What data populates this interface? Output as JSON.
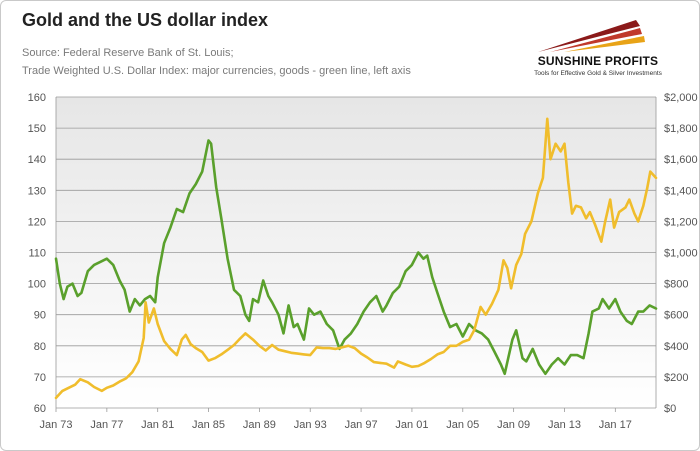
{
  "header": {
    "title": "Gold and the US dollar index",
    "source_line1": "Source: Federal Reserve Bank of St. Louis;",
    "source_line2": "Trade Weighted U.S. Dollar Index: major currencies, goods - green line, left axis"
  },
  "logo": {
    "name": "SUNSHINE PROFITS",
    "tagline": "Tools for Effective Gold & Silver Investments",
    "colors": [
      "#8b1a1a",
      "#c0392b",
      "#e8a317"
    ]
  },
  "chart_data": {
    "type": "line",
    "title": "Gold and the US dollar index",
    "x_tick_labels": [
      "Jan 73",
      "Jan 77",
      "Jan 81",
      "Jan 85",
      "Jan 89",
      "Jan 93",
      "Jan 97",
      "Jan 01",
      "Jan 05",
      "Jan 09",
      "Jan 13",
      "Jan 17"
    ],
    "x_range": [
      1973.0,
      2020.2
    ],
    "y_left": {
      "range": [
        60,
        160
      ],
      "ticks": [
        60,
        70,
        80,
        90,
        100,
        110,
        120,
        130,
        140,
        150,
        160
      ]
    },
    "y_right": {
      "range": [
        0,
        2000
      ],
      "tick_labels": [
        "$0",
        "$200",
        "$400",
        "$600",
        "$800",
        "$1,000",
        "$1,200",
        "$1,400",
        "$1,600",
        "$1,800",
        "$2,000"
      ]
    },
    "grid": true,
    "series": [
      {
        "color": "#5aa02c",
        "axis": "left",
        "points": [
          [
            1973.0,
            108
          ],
          [
            1973.3,
            100
          ],
          [
            1973.6,
            95
          ],
          [
            1973.9,
            99
          ],
          [
            1974.3,
            100
          ],
          [
            1974.7,
            96
          ],
          [
            1975.0,
            97
          ],
          [
            1975.5,
            104
          ],
          [
            1976.0,
            106
          ],
          [
            1976.5,
            107
          ],
          [
            1977.0,
            108
          ],
          [
            1977.5,
            106
          ],
          [
            1978.0,
            101
          ],
          [
            1978.4,
            98
          ],
          [
            1978.8,
            91
          ],
          [
            1979.2,
            95
          ],
          [
            1979.6,
            93
          ],
          [
            1980.0,
            95
          ],
          [
            1980.4,
            96
          ],
          [
            1980.8,
            94
          ],
          [
            1981.0,
            102
          ],
          [
            1981.5,
            113
          ],
          [
            1982.0,
            118
          ],
          [
            1982.5,
            124
          ],
          [
            1983.0,
            123
          ],
          [
            1983.5,
            129
          ],
          [
            1984.0,
            132
          ],
          [
            1984.5,
            136
          ],
          [
            1985.0,
            146
          ],
          [
            1985.2,
            145
          ],
          [
            1985.6,
            131
          ],
          [
            1986.0,
            121
          ],
          [
            1986.5,
            108
          ],
          [
            1987.0,
            98
          ],
          [
            1987.5,
            96
          ],
          [
            1987.9,
            90
          ],
          [
            1988.2,
            88
          ],
          [
            1988.5,
            95
          ],
          [
            1988.9,
            94
          ],
          [
            1989.3,
            101
          ],
          [
            1989.7,
            96
          ],
          [
            1990.0,
            94
          ],
          [
            1990.5,
            90
          ],
          [
            1990.9,
            84
          ],
          [
            1991.3,
            93
          ],
          [
            1991.7,
            86
          ],
          [
            1992.0,
            87
          ],
          [
            1992.5,
            82
          ],
          [
            1992.9,
            92
          ],
          [
            1993.3,
            90
          ],
          [
            1993.8,
            91
          ],
          [
            1994.3,
            87
          ],
          [
            1994.8,
            85
          ],
          [
            1995.3,
            79
          ],
          [
            1995.7,
            82
          ],
          [
            1996.2,
            84
          ],
          [
            1996.7,
            87
          ],
          [
            1997.2,
            91
          ],
          [
            1997.7,
            94
          ],
          [
            1998.2,
            96
          ],
          [
            1998.7,
            91
          ],
          [
            1999.0,
            93
          ],
          [
            1999.5,
            97
          ],
          [
            2000.0,
            99
          ],
          [
            2000.5,
            104
          ],
          [
            2001.0,
            106
          ],
          [
            2001.5,
            110
          ],
          [
            2001.9,
            108
          ],
          [
            2002.2,
            109
          ],
          [
            2002.6,
            102
          ],
          [
            2003.0,
            97
          ],
          [
            2003.5,
            91
          ],
          [
            2004.0,
            86
          ],
          [
            2004.5,
            87
          ],
          [
            2005.0,
            83
          ],
          [
            2005.5,
            87
          ],
          [
            2006.0,
            85
          ],
          [
            2006.5,
            84
          ],
          [
            2007.0,
            82
          ],
          [
            2007.5,
            78
          ],
          [
            2008.0,
            74
          ],
          [
            2008.3,
            71
          ],
          [
            2008.9,
            82
          ],
          [
            2009.2,
            85
          ],
          [
            2009.7,
            76
          ],
          [
            2010.0,
            75
          ],
          [
            2010.5,
            79
          ],
          [
            2011.0,
            74
          ],
          [
            2011.5,
            71
          ],
          [
            2012.0,
            74
          ],
          [
            2012.5,
            76
          ],
          [
            2013.0,
            74
          ],
          [
            2013.5,
            77
          ],
          [
            2014.0,
            77
          ],
          [
            2014.5,
            76
          ],
          [
            2014.9,
            84
          ],
          [
            2015.2,
            91
          ],
          [
            2015.7,
            92
          ],
          [
            2016.0,
            95
          ],
          [
            2016.5,
            92
          ],
          [
            2017.0,
            95
          ],
          [
            2017.4,
            91
          ],
          [
            2017.9,
            88
          ],
          [
            2018.3,
            87
          ],
          [
            2018.8,
            91
          ],
          [
            2019.2,
            91
          ],
          [
            2019.7,
            93
          ],
          [
            2020.2,
            92
          ]
        ]
      },
      {
        "color": "#f0bd2c",
        "axis": "right",
        "points": [
          [
            1973.0,
            65
          ],
          [
            1973.5,
            110
          ],
          [
            1974.0,
            130
          ],
          [
            1974.5,
            150
          ],
          [
            1974.9,
            185
          ],
          [
            1975.5,
            165
          ],
          [
            1976.0,
            135
          ],
          [
            1976.6,
            110
          ],
          [
            1977.0,
            130
          ],
          [
            1977.5,
            145
          ],
          [
            1978.0,
            170
          ],
          [
            1978.5,
            190
          ],
          [
            1979.0,
            230
          ],
          [
            1979.5,
            300
          ],
          [
            1979.9,
            450
          ],
          [
            1980.05,
            680
          ],
          [
            1980.3,
            550
          ],
          [
            1980.7,
            640
          ],
          [
            1981.0,
            540
          ],
          [
            1981.5,
            430
          ],
          [
            1982.0,
            380
          ],
          [
            1982.5,
            340
          ],
          [
            1982.9,
            440
          ],
          [
            1983.2,
            470
          ],
          [
            1983.6,
            410
          ],
          [
            1984.0,
            385
          ],
          [
            1984.5,
            360
          ],
          [
            1985.0,
            305
          ],
          [
            1985.5,
            320
          ],
          [
            1986.0,
            345
          ],
          [
            1986.6,
            380
          ],
          [
            1987.0,
            405
          ],
          [
            1987.4,
            440
          ],
          [
            1987.9,
            480
          ],
          [
            1988.5,
            440
          ],
          [
            1989.0,
            400
          ],
          [
            1989.5,
            370
          ],
          [
            1990.0,
            405
          ],
          [
            1990.5,
            375
          ],
          [
            1991.0,
            365
          ],
          [
            1991.5,
            355
          ],
          [
            1992.0,
            350
          ],
          [
            1992.5,
            345
          ],
          [
            1993.0,
            340
          ],
          [
            1993.5,
            390
          ],
          [
            1994.0,
            385
          ],
          [
            1994.5,
            385
          ],
          [
            1995.0,
            380
          ],
          [
            1995.5,
            390
          ],
          [
            1996.0,
            400
          ],
          [
            1996.5,
            385
          ],
          [
            1997.0,
            350
          ],
          [
            1997.5,
            325
          ],
          [
            1998.0,
            295
          ],
          [
            1998.5,
            290
          ],
          [
            1999.0,
            285
          ],
          [
            1999.6,
            260
          ],
          [
            1999.9,
            300
          ],
          [
            2000.5,
            280
          ],
          [
            2001.0,
            265
          ],
          [
            2001.5,
            270
          ],
          [
            2002.0,
            290
          ],
          [
            2002.5,
            315
          ],
          [
            2003.0,
            345
          ],
          [
            2003.5,
            360
          ],
          [
            2004.0,
            400
          ],
          [
            2004.5,
            400
          ],
          [
            2005.0,
            425
          ],
          [
            2005.5,
            440
          ],
          [
            2005.9,
            500
          ],
          [
            2006.4,
            650
          ],
          [
            2006.8,
            600
          ],
          [
            2007.3,
            670
          ],
          [
            2007.8,
            760
          ],
          [
            2008.2,
            950
          ],
          [
            2008.5,
            900
          ],
          [
            2008.8,
            770
          ],
          [
            2009.2,
            920
          ],
          [
            2009.6,
            990
          ],
          [
            2009.9,
            1120
          ],
          [
            2010.4,
            1200
          ],
          [
            2010.9,
            1380
          ],
          [
            2011.3,
            1480
          ],
          [
            2011.65,
            1860
          ],
          [
            2011.9,
            1600
          ],
          [
            2012.3,
            1700
          ],
          [
            2012.7,
            1650
          ],
          [
            2013.0,
            1700
          ],
          [
            2013.3,
            1450
          ],
          [
            2013.6,
            1250
          ],
          [
            2013.9,
            1300
          ],
          [
            2014.3,
            1290
          ],
          [
            2014.7,
            1220
          ],
          [
            2015.0,
            1260
          ],
          [
            2015.4,
            1180
          ],
          [
            2015.9,
            1070
          ],
          [
            2016.2,
            1200
          ],
          [
            2016.6,
            1340
          ],
          [
            2016.9,
            1160
          ],
          [
            2017.3,
            1260
          ],
          [
            2017.8,
            1290
          ],
          [
            2018.1,
            1340
          ],
          [
            2018.5,
            1250
          ],
          [
            2018.8,
            1200
          ],
          [
            2019.2,
            1300
          ],
          [
            2019.5,
            1410
          ],
          [
            2019.75,
            1520
          ],
          [
            2020.2,
            1480
          ]
        ]
      }
    ]
  }
}
